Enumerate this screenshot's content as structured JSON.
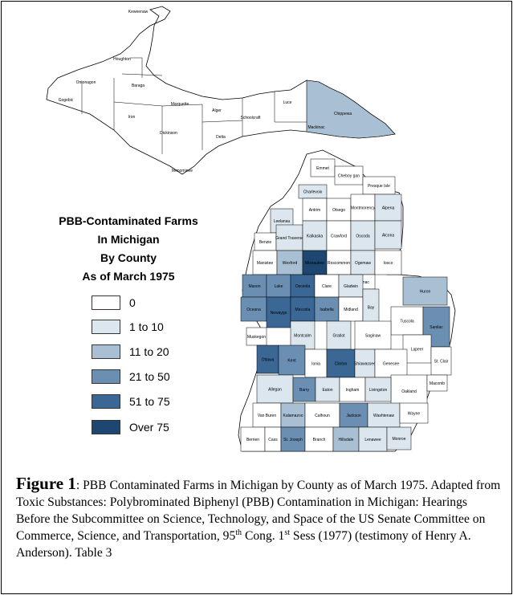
{
  "legend": {
    "title_lines": [
      "PBB-Contaminated Farms",
      "In Michigan",
      "By County",
      "As of March 1975"
    ],
    "items": [
      {
        "label": "0",
        "color": "#ffffff"
      },
      {
        "label": "1 to 10",
        "color": "#dbe6ee"
      },
      {
        "label": "11 to 20",
        "color": "#a9bfd3"
      },
      {
        "label": "21 to 50",
        "color": "#6b8fb3"
      },
      {
        "label": "51 to 75",
        "color": "#3b6794"
      },
      {
        "label": "Over 75",
        "color": "#1d4670"
      }
    ]
  },
  "counties": [
    {
      "name": "Keweenaw",
      "level": 0
    },
    {
      "name": "Houghton",
      "level": 0
    },
    {
      "name": "Ontonagon",
      "level": 0
    },
    {
      "name": "Gogebic",
      "level": 0
    },
    {
      "name": "Baraga",
      "level": 0
    },
    {
      "name": "Iron",
      "level": 0
    },
    {
      "name": "Marquette",
      "level": 0
    },
    {
      "name": "Dickinson",
      "level": 0
    },
    {
      "name": "Menominee",
      "level": 0
    },
    {
      "name": "Alger",
      "level": 0
    },
    {
      "name": "Delta",
      "level": 0
    },
    {
      "name": "Schoolcraft",
      "level": 0
    },
    {
      "name": "Luce",
      "level": 0
    },
    {
      "name": "Mackinac",
      "level": 0
    },
    {
      "name": "Chippewa",
      "level": 2
    },
    {
      "name": "Emmet",
      "level": 0
    },
    {
      "name": "Cheboy gan",
      "level": 0
    },
    {
      "name": "Presque Isle",
      "level": 0
    },
    {
      "name": "Charlevoix",
      "level": 1
    },
    {
      "name": "Leelanau",
      "level": 1
    },
    {
      "name": "Antrim",
      "level": 0
    },
    {
      "name": "Otsego",
      "level": 0
    },
    {
      "name": "Montmorency",
      "level": 0
    },
    {
      "name": "Alpena",
      "level": 1
    },
    {
      "name": "Benzie",
      "level": 0
    },
    {
      "name": "Grand Traverse",
      "level": 1
    },
    {
      "name": "Kalkaska",
      "level": 1
    },
    {
      "name": "Crawford",
      "level": 0
    },
    {
      "name": "Oscoda",
      "level": 1
    },
    {
      "name": "Alcona",
      "level": 1
    },
    {
      "name": "Manistee",
      "level": 0
    },
    {
      "name": "Wexford",
      "level": 2
    },
    {
      "name": "Missaukee",
      "level": 5
    },
    {
      "name": "Roscommon",
      "level": 0
    },
    {
      "name": "Ogemaw",
      "level": 1
    },
    {
      "name": "Iosco",
      "level": 0
    },
    {
      "name": "Arenac",
      "level": 0
    },
    {
      "name": "Mason",
      "level": 3
    },
    {
      "name": "Lake",
      "level": 3
    },
    {
      "name": "Osceola",
      "level": 4
    },
    {
      "name": "Clare",
      "level": 0
    },
    {
      "name": "Gladwin",
      "level": 1
    },
    {
      "name": "Huron",
      "level": 2
    },
    {
      "name": "Oceana",
      "level": 3
    },
    {
      "name": "Newaygo",
      "level": 4
    },
    {
      "name": "Mecosta",
      "level": 4
    },
    {
      "name": "Isabella",
      "level": 3
    },
    {
      "name": "Midland",
      "level": 0
    },
    {
      "name": "Bay",
      "level": 1
    },
    {
      "name": "Tuscola",
      "level": 0
    },
    {
      "name": "Sanilac",
      "level": 3
    },
    {
      "name": "Muskegon",
      "level": 0
    },
    {
      "name": "Montcalm",
      "level": 1
    },
    {
      "name": "Gratiot",
      "level": 1
    },
    {
      "name": "Saginaw",
      "level": 0
    },
    {
      "name": "Lapeer",
      "level": 0
    },
    {
      "name": "St. Clair",
      "level": 0
    },
    {
      "name": "Ottawa",
      "level": 4
    },
    {
      "name": "Kent",
      "level": 3
    },
    {
      "name": "Ionia",
      "level": 0
    },
    {
      "name": "Clinton",
      "level": 4
    },
    {
      "name": "Shiawassee",
      "level": 1
    },
    {
      "name": "Genesee",
      "level": 0
    },
    {
      "name": "Oakland",
      "level": 0
    },
    {
      "name": "Macomb",
      "level": 0
    },
    {
      "name": "Allegan",
      "level": 1
    },
    {
      "name": "Barry",
      "level": 3
    },
    {
      "name": "Eaton",
      "level": 1
    },
    {
      "name": "Ingham",
      "level": 0
    },
    {
      "name": "Livingston",
      "level": 1
    },
    {
      "name": "Van Buren",
      "level": 0
    },
    {
      "name": "Kalamazoo",
      "level": 2
    },
    {
      "name": "Calhoun",
      "level": 0
    },
    {
      "name": "Jackson",
      "level": 3
    },
    {
      "name": "Washtenaw",
      "level": 1
    },
    {
      "name": "Wayne",
      "level": 0
    },
    {
      "name": "Berrien",
      "level": 0
    },
    {
      "name": "Cass",
      "level": 0
    },
    {
      "name": "St. Joseph",
      "level": 3
    },
    {
      "name": "Branch",
      "level": 0
    },
    {
      "name": "Hillsdale",
      "level": 2
    },
    {
      "name": "Lenawee",
      "level": 1
    },
    {
      "name": "Monroe",
      "level": 1
    }
  ],
  "caption": {
    "figure_label": "Figure 1",
    "part1": ": PBB Contaminated Farms in Michigan by County as of March 1975. Adapted from Toxic Substances: Polybrominated Biphenyl (PBB) Contamination in Michigan: Hearings Before the Subcommittee on Science, Technology, and Space of the US Senate Committee on Commerce, Science, and Transportation, 95",
    "sup1": "th",
    "part2": " Cong. 1",
    "sup2": "st",
    "part3": " Sess (1977) (testimony of Henry A. Anderson). Table 3"
  }
}
